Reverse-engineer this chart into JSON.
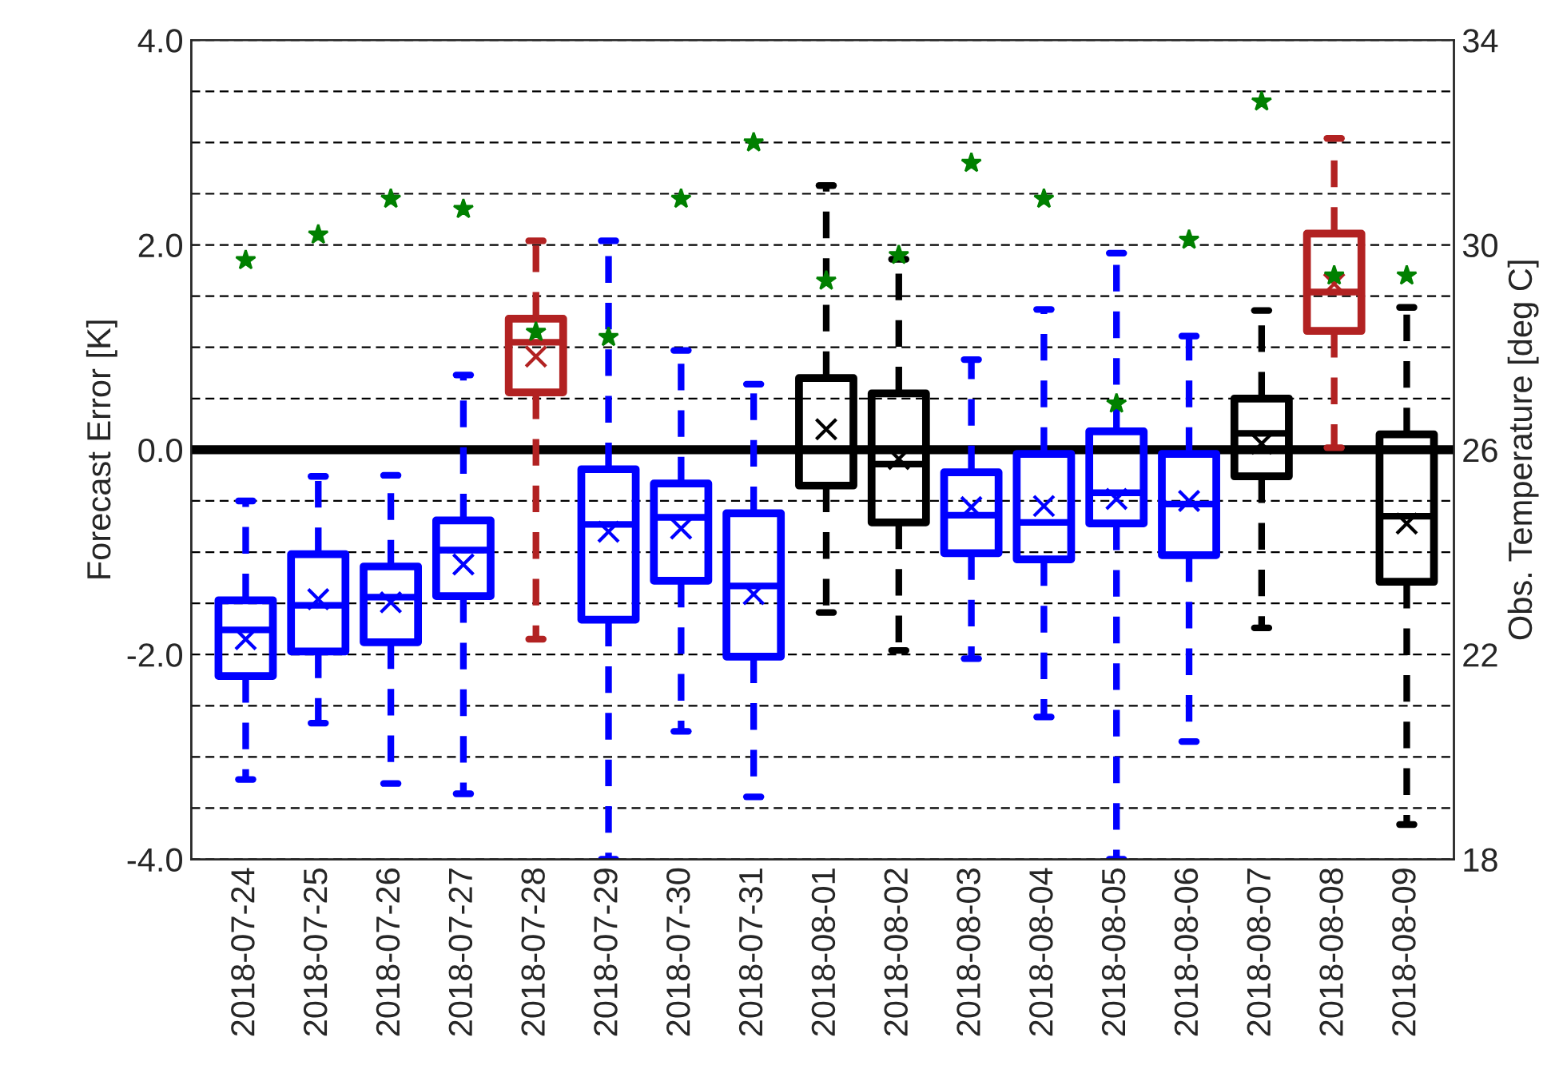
{
  "chart_data": {
    "type": "box",
    "ylabel": "Forecast Error [K]",
    "y2label": "Obs. Temperature [deg C]",
    "categories": [
      "2018-07-24",
      "2018-07-25",
      "2018-07-26",
      "2018-07-27",
      "2018-07-28",
      "2018-07-29",
      "2018-07-30",
      "2018-07-31",
      "2018-08-01",
      "2018-08-02",
      "2018-08-03",
      "2018-08-04",
      "2018-08-05",
      "2018-08-06",
      "2018-08-07",
      "2018-08-08",
      "2018-08-09"
    ],
    "boxes": [
      {
        "low": -3.22,
        "q1": -2.21,
        "median": -1.76,
        "q3": -1.47,
        "high": -0.5,
        "mean": -1.85
      },
      {
        "low": -2.67,
        "q1": -1.97,
        "median": -1.52,
        "q3": -1.02,
        "high": -0.26,
        "mean": -1.46
      },
      {
        "low": -3.26,
        "q1": -1.88,
        "median": -1.44,
        "q3": -1.14,
        "high": -0.25,
        "mean": -1.49
      },
      {
        "low": -3.36,
        "q1": -1.43,
        "median": -0.98,
        "q3": -0.69,
        "high": 0.73,
        "mean": -1.12
      },
      {
        "low": -1.85,
        "q1": 0.56,
        "median": 1.05,
        "q3": 1.28,
        "high": 2.04,
        "mean": 0.91
      },
      {
        "low": -4.0,
        "q1": -1.66,
        "median": -0.73,
        "q3": -0.19,
        "high": 2.04,
        "mean": -0.8
      },
      {
        "low": -2.75,
        "q1": -1.28,
        "median": -0.66,
        "q3": -0.33,
        "high": 0.97,
        "mean": -0.77
      },
      {
        "low": -3.39,
        "q1": -2.02,
        "median": -1.33,
        "q3": -0.62,
        "high": 0.64,
        "mean": -1.41
      },
      {
        "low": -1.59,
        "q1": -0.35,
        "median": 0.0,
        "q3": 0.7,
        "high": 2.58,
        "mean": 0.2
      },
      {
        "low": -1.96,
        "q1": -0.71,
        "median": -0.14,
        "q3": 0.55,
        "high": 1.86,
        "mean": -0.09
      },
      {
        "low": -2.04,
        "q1": -1.01,
        "median": -0.64,
        "q3": -0.22,
        "high": 0.88,
        "mean": -0.56
      },
      {
        "low": -2.61,
        "q1": -1.07,
        "median": -0.71,
        "q3": -0.04,
        "high": 1.37,
        "mean": -0.55
      },
      {
        "low": -4.0,
        "q1": -0.72,
        "median": -0.42,
        "q3": 0.18,
        "high": 1.92,
        "mean": -0.48
      },
      {
        "low": -2.85,
        "q1": -1.03,
        "median": -0.53,
        "q3": -0.04,
        "high": 1.11,
        "mean": -0.5
      },
      {
        "low": -1.74,
        "q1": -0.26,
        "median": 0.16,
        "q3": 0.5,
        "high": 1.36,
        "mean": 0.06
      },
      {
        "low": 0.02,
        "q1": 1.16,
        "median": 1.54,
        "q3": 2.11,
        "high": 3.04,
        "mean": 1.62
      },
      {
        "low": -3.66,
        "q1": -1.29,
        "median": -0.65,
        "q3": 0.15,
        "high": 1.39,
        "mean": -0.72
      }
    ],
    "colors": [
      "#0000ff",
      "#0000ff",
      "#0000ff",
      "#0000ff",
      "#b22222",
      "#0000ff",
      "#0000ff",
      "#0000ff",
      "#000000",
      "#000000",
      "#0000ff",
      "#0000ff",
      "#0000ff",
      "#0000ff",
      "#000000",
      "#b22222",
      "#000000"
    ],
    "series": [
      {
        "type": "scatter",
        "axis": "y2",
        "marker": "star",
        "color": "#008000",
        "values": [
          29.7,
          30.2,
          30.9,
          30.7,
          28.3,
          28.2,
          30.9,
          32.0,
          29.3,
          29.8,
          31.6,
          30.9,
          26.9,
          30.1,
          32.8,
          29.4,
          29.4
        ]
      }
    ],
    "ylim": [
      -4,
      4
    ],
    "yticks": [
      {
        "value": -4,
        "label": "-4.0"
      },
      {
        "value": -3.5,
        "label": null
      },
      {
        "value": -3,
        "label": null
      },
      {
        "value": -2.5,
        "label": null
      },
      {
        "value": -2,
        "label": "-2.0"
      },
      {
        "value": -1.5,
        "label": null
      },
      {
        "value": -1,
        "label": null
      },
      {
        "value": -0.5,
        "label": null
      },
      {
        "value": 0,
        "label": "0.0"
      },
      {
        "value": 0.5,
        "label": null
      },
      {
        "value": 1,
        "label": null
      },
      {
        "value": 1.5,
        "label": null
      },
      {
        "value": 2,
        "label": "2.0"
      },
      {
        "value": 2.5,
        "label": null
      },
      {
        "value": 3,
        "label": null
      },
      {
        "value": 3.5,
        "label": null
      },
      {
        "value": 4,
        "label": "4.0"
      }
    ],
    "y2lim": [
      18,
      34
    ],
    "y2ticks": [
      18,
      22,
      26,
      30,
      34
    ],
    "ref_lines": [
      {
        "axis": "y",
        "value": 0,
        "color": "#000000"
      }
    ],
    "grid": "y",
    "line_style": "dashed"
  }
}
